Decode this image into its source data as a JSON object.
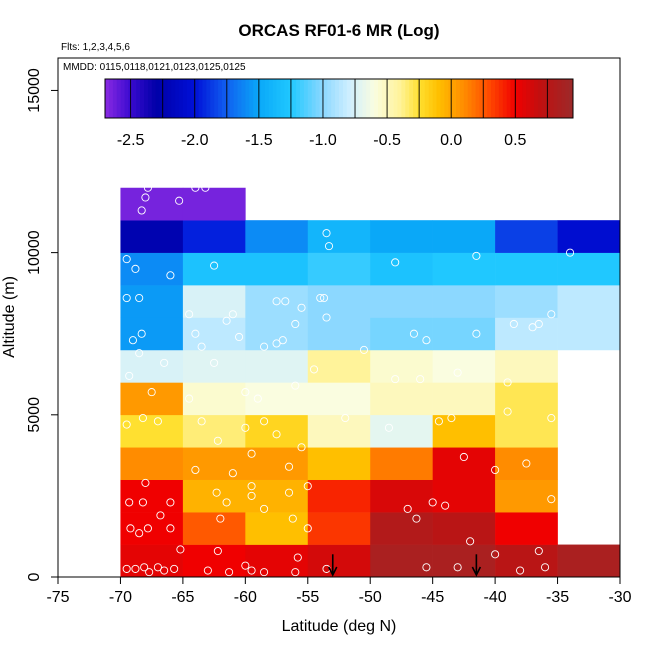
{
  "chart_data": {
    "type": "heatmap",
    "title": "ORCAS RF01-6 MR (Log)",
    "annotations": [
      "Flts: 1,2,3,4,5,6",
      "MMDD: 0115,0118,0121,0123,0125,0125"
    ],
    "xlabel": "Latitude (deg N)",
    "ylabel": "Altitude (m)",
    "xlim": [
      -75,
      -30
    ],
    "ylim": [
      0,
      16000
    ],
    "x_ticks": [
      -75,
      -70,
      -65,
      -60,
      -55,
      -50,
      -45,
      -40,
      -35,
      -30
    ],
    "x_tick_labels": [
      "-75",
      "-70",
      "-65",
      "-60",
      "-55",
      "-50",
      "-45",
      "-40",
      "-35",
      "-30"
    ],
    "y_ticks": [
      0,
      5000,
      10000,
      15000
    ],
    "y_tick_labels": [
      "0",
      "5000",
      "10000",
      "15000"
    ],
    "colorbar": {
      "range": [
        -2.7,
        0.95
      ],
      "ticks": [
        -2.5,
        -2.0,
        -1.5,
        -1.0,
        -0.5,
        0.0,
        0.5
      ],
      "tick_labels": [
        "-2.5",
        "-2.0",
        "-1.5",
        "-1.0",
        "-0.5",
        "0.0",
        "0.5"
      ]
    },
    "colormap": [
      {
        "v": -2.7,
        "c": "#8a2be2"
      },
      {
        "v": -2.5,
        "c": "#3a0ad0"
      },
      {
        "v": -2.3,
        "c": "#0000a8"
      },
      {
        "v": -2.0,
        "c": "#0010d8"
      },
      {
        "v": -1.75,
        "c": "#1060f0"
      },
      {
        "v": -1.5,
        "c": "#0aa8f8"
      },
      {
        "v": -1.25,
        "c": "#20c8ff"
      },
      {
        "v": -1.0,
        "c": "#8cd8ff"
      },
      {
        "v": -0.8,
        "c": "#cdeeff"
      },
      {
        "v": -0.6,
        "c": "#fafde0"
      },
      {
        "v": -0.4,
        "c": "#fff39a"
      },
      {
        "v": -0.25,
        "c": "#ffe030"
      },
      {
        "v": -0.1,
        "c": "#ffbf00"
      },
      {
        "v": 0.1,
        "c": "#ff8c00"
      },
      {
        "v": 0.3,
        "c": "#ff4800"
      },
      {
        "v": 0.5,
        "c": "#f00000"
      },
      {
        "v": 0.7,
        "c": "#c01010"
      },
      {
        "v": 0.95,
        "c": "#9c2a2a"
      }
    ],
    "lat_bins": [
      -70,
      -65,
      -60,
      -55,
      -50,
      -45,
      -40,
      -35,
      -30
    ],
    "alt_bins": [
      0,
      1000,
      2000,
      3000,
      4000,
      5000,
      6000,
      7000,
      8000,
      9000,
      10000,
      11000,
      12000
    ],
    "values": [
      [
        0.55,
        0.5,
        0.55,
        0.62,
        0.85,
        0.85,
        0.75,
        0.85
      ],
      [
        0.5,
        0.25,
        -0.1,
        0.35,
        0.8,
        0.75,
        0.5,
        null
      ],
      [
        0.5,
        -0.05,
        -0.05,
        0.4,
        0.6,
        0.55,
        0.05,
        null
      ],
      [
        0.1,
        0.05,
        0.05,
        -0.1,
        0.15,
        0.55,
        0.1,
        null
      ],
      [
        -0.25,
        -0.35,
        -0.2,
        -0.5,
        -0.7,
        -0.1,
        -0.3,
        null
      ],
      [
        0.05,
        -0.55,
        -0.6,
        -0.6,
        -0.5,
        -0.5,
        -0.3,
        null
      ],
      [
        -0.75,
        -0.72,
        -0.72,
        -0.4,
        -0.55,
        -0.6,
        -0.5,
        null
      ],
      [
        -1.55,
        -0.85,
        -0.95,
        -1.0,
        -1.05,
        -1.05,
        -0.85,
        -0.85
      ],
      [
        -1.55,
        -0.75,
        -0.95,
        -1.0,
        -1.0,
        -1.0,
        -0.95,
        -0.85
      ],
      [
        -1.6,
        -1.3,
        -1.3,
        -1.2,
        -1.3,
        -1.25,
        -1.25,
        -1.25
      ],
      [
        -2.25,
        -1.95,
        -1.6,
        -1.4,
        -1.5,
        -1.5,
        -1.85,
        -2.05
      ],
      [
        -2.65,
        -2.65,
        null,
        null,
        null,
        null,
        null,
        null
      ]
    ],
    "arrows_at_lat": [
      -53.0,
      -41.5
    ],
    "points": [
      [
        -69.5,
        250
      ],
      [
        -68.8,
        250
      ],
      [
        -68.1,
        300
      ],
      [
        -67.7,
        150
      ],
      [
        -67,
        300
      ],
      [
        -66.5,
        200
      ],
      [
        -65.7,
        250
      ],
      [
        -65.2,
        850
      ],
      [
        -63,
        200
      ],
      [
        -62.2,
        800
      ],
      [
        -61.3,
        150
      ],
      [
        -60,
        350
      ],
      [
        -59.5,
        200
      ],
      [
        -58.5,
        150
      ],
      [
        -56,
        150
      ],
      [
        -55.8,
        600
      ],
      [
        -53.5,
        250
      ],
      [
        -45.5,
        300
      ],
      [
        -43,
        300
      ],
      [
        -40,
        700
      ],
      [
        -38,
        200
      ],
      [
        -36.5,
        800
      ],
      [
        -36,
        300
      ],
      [
        -69.2,
        1500
      ],
      [
        -68.5,
        1350
      ],
      [
        -67.8,
        1500
      ],
      [
        -66.8,
        1900
      ],
      [
        -66,
        1500
      ],
      [
        -62,
        1800
      ],
      [
        -61.5,
        2300
      ],
      [
        -59.5,
        2500
      ],
      [
        -58.5,
        2100
      ],
      [
        -56.2,
        1800
      ],
      [
        -55,
        1500
      ],
      [
        -47,
        2100
      ],
      [
        -46.3,
        1800
      ],
      [
        -45,
        2300
      ],
      [
        -44,
        2200
      ],
      [
        -42,
        1100
      ],
      [
        -35.5,
        2400
      ],
      [
        -69.3,
        2300
      ],
      [
        -68.2,
        2300
      ],
      [
        -66,
        2300
      ],
      [
        -62.3,
        2600
      ],
      [
        -59.5,
        2800
      ],
      [
        -56.5,
        2600
      ],
      [
        -68,
        2900
      ],
      [
        -64,
        3300
      ],
      [
        -61,
        3200
      ],
      [
        -59.5,
        3800
      ],
      [
        -56.5,
        3400
      ],
      [
        -55,
        2800
      ],
      [
        -42.5,
        3700
      ],
      [
        -40,
        3300
      ],
      [
        -37.5,
        3500
      ],
      [
        -69.5,
        4700
      ],
      [
        -68.2,
        4900
      ],
      [
        -67,
        4800
      ],
      [
        -63.5,
        4800
      ],
      [
        -62.2,
        4200
      ],
      [
        -60,
        4600
      ],
      [
        -58.5,
        4800
      ],
      [
        -57.5,
        4400
      ],
      [
        -55.5,
        4000
      ],
      [
        -52,
        4900
      ],
      [
        -48.5,
        4600
      ],
      [
        -44.5,
        4800
      ],
      [
        -43.5,
        4900
      ],
      [
        -39,
        5100
      ],
      [
        -35.5,
        4900
      ],
      [
        -67.5,
        5700
      ],
      [
        -64.5,
        5500
      ],
      [
        -60,
        5700
      ],
      [
        -59,
        5500
      ],
      [
        -56,
        5900
      ],
      [
        -54.5,
        6400
      ],
      [
        -48,
        6100
      ],
      [
        -46,
        6100
      ],
      [
        -43,
        6300
      ],
      [
        -39,
        6000
      ],
      [
        -69.3,
        6200
      ],
      [
        -68.5,
        6900
      ],
      [
        -66.5,
        6600
      ],
      [
        -63.5,
        7100
      ],
      [
        -62.5,
        6600
      ],
      [
        -60.5,
        7400
      ],
      [
        -58.5,
        7100
      ],
      [
        -57.5,
        7200
      ],
      [
        -57,
        7300
      ],
      [
        -53.5,
        8000
      ],
      [
        -50.5,
        7000
      ],
      [
        -46.5,
        7500
      ],
      [
        -45.5,
        7300
      ],
      [
        -41.5,
        7500
      ],
      [
        -38.5,
        7800
      ],
      [
        -37,
        7700
      ],
      [
        -69,
        7300
      ],
      [
        -68.3,
        7500
      ],
      [
        -64,
        7500
      ],
      [
        -61.5,
        7900
      ],
      [
        -56,
        7800
      ],
      [
        -69.5,
        8600
      ],
      [
        -68.5,
        8600
      ],
      [
        -64.5,
        8100
      ],
      [
        -61,
        8100
      ],
      [
        -57.5,
        8500
      ],
      [
        -56.8,
        8500
      ],
      [
        -55.5,
        8300
      ],
      [
        -54,
        8600
      ],
      [
        -53.7,
        8600
      ],
      [
        -36.5,
        7800
      ],
      [
        -35.5,
        8100
      ],
      [
        -69.5,
        9800
      ],
      [
        -68.8,
        9500
      ],
      [
        -66,
        9300
      ],
      [
        -62.5,
        9600
      ],
      [
        -53.5,
        10600
      ],
      [
        -53.3,
        10200
      ],
      [
        -48,
        9700
      ],
      [
        -41.5,
        9900
      ],
      [
        -34,
        10000
      ],
      [
        -68.3,
        11300
      ],
      [
        -68,
        11700
      ],
      [
        -67.8,
        12000
      ],
      [
        -65.3,
        11600
      ],
      [
        -64,
        12000
      ],
      [
        -63.2,
        12000
      ]
    ],
    "points_note": "approximate positions of observation markers (lat, altitude)"
  }
}
